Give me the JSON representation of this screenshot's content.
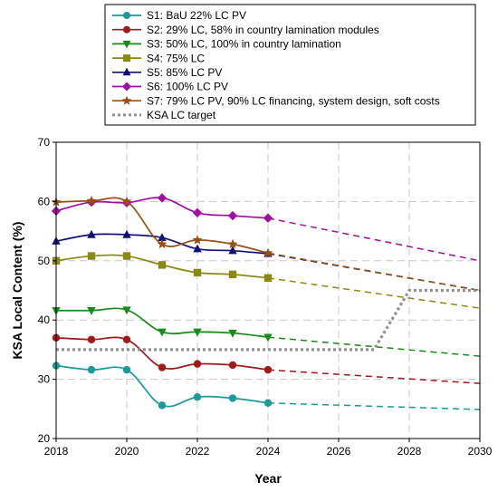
{
  "chart_data": {
    "type": "line",
    "xlabel": "Year",
    "ylabel": "KSA Local Content (%)",
    "xlim": [
      2018,
      2030
    ],
    "ylim": [
      20,
      70
    ],
    "x_ticks": [
      2018,
      2020,
      2022,
      2024,
      2026,
      2028,
      2030
    ],
    "y_ticks": [
      20,
      30,
      40,
      50,
      60,
      70
    ],
    "grid": "dashed",
    "legend_position": "top",
    "series": [
      {
        "name": "S1: BaU 22% LC PV",
        "color": "#1a9a9a",
        "marker": "circle",
        "x": [
          2018,
          2019,
          2020,
          2021,
          2022,
          2023,
          2024
        ],
        "values": [
          32.3,
          31.6,
          31.6,
          25.6,
          27.0,
          26.8,
          26.0
        ],
        "projection": {
          "x": [
            2024,
            2030
          ],
          "values": [
            26.0,
            24.9
          ]
        }
      },
      {
        "name": "S2: 29% LC, 58% in country lamination modules",
        "color": "#a01a1a",
        "marker": "circle",
        "x": [
          2018,
          2019,
          2020,
          2021,
          2022,
          2023,
          2024
        ],
        "values": [
          37.0,
          36.7,
          36.7,
          32.0,
          32.6,
          32.4,
          31.6
        ],
        "projection": {
          "x": [
            2024,
            2030
          ],
          "values": [
            31.6,
            29.3
          ]
        }
      },
      {
        "name": "S3: 50% LC, 100% in country lamination",
        "color": "#1a8a1a",
        "marker": "triangle-down",
        "x": [
          2018,
          2019,
          2020,
          2021,
          2022,
          2023,
          2024
        ],
        "values": [
          41.6,
          41.6,
          41.7,
          38.0,
          38.0,
          37.8,
          37.1
        ],
        "projection": {
          "x": [
            2024,
            2030
          ],
          "values": [
            37.1,
            33.9
          ]
        }
      },
      {
        "name": "S4: 75% LC",
        "color": "#8a8a10",
        "marker": "square",
        "x": [
          2018,
          2019,
          2020,
          2021,
          2022,
          2023,
          2024
        ],
        "values": [
          50.0,
          50.8,
          50.8,
          49.3,
          48.0,
          47.7,
          47.1
        ],
        "projection": {
          "x": [
            2024,
            2030
          ],
          "values": [
            47.1,
            42.0
          ]
        }
      },
      {
        "name": "S5: 85% LC PV",
        "color": "#10107a",
        "marker": "triangle-up",
        "x": [
          2018,
          2019,
          2020,
          2021,
          2022,
          2023,
          2024
        ],
        "values": [
          53.3,
          54.4,
          54.4,
          53.9,
          52.0,
          51.7,
          51.2
        ],
        "projection": {
          "x": [
            2024,
            2030
          ],
          "values": [
            51.2,
            45.0
          ]
        }
      },
      {
        "name": "S6: 100% LC PV",
        "color": "#a010a0",
        "marker": "diamond",
        "x": [
          2018,
          2019,
          2020,
          2021,
          2022,
          2023,
          2024
        ],
        "values": [
          58.4,
          59.9,
          59.8,
          60.6,
          58.1,
          57.6,
          57.2
        ],
        "projection": {
          "x": [
            2024,
            2030
          ],
          "values": [
            57.2,
            50.0
          ]
        }
      },
      {
        "name": "S7: 79% LC PV, 90% LC financing, system design, soft costs",
        "color": "#9a5010",
        "marker": "star",
        "x": [
          2018,
          2019,
          2020,
          2021,
          2022,
          2023,
          2024
        ],
        "values": [
          59.9,
          60.1,
          60.0,
          52.8,
          53.5,
          52.8,
          51.3
        ],
        "projection": {
          "x": [
            2024,
            2030
          ],
          "values": [
            51.3,
            45.0
          ]
        }
      },
      {
        "name": "KSA LC target",
        "color": "#909090",
        "marker": "none",
        "style": "dotted",
        "x": [
          2018,
          2027,
          2028,
          2030
        ],
        "values": [
          35.0,
          35.0,
          45.0,
          45.0
        ]
      }
    ]
  }
}
